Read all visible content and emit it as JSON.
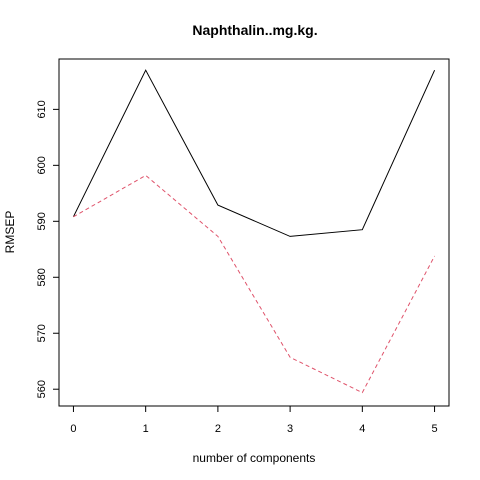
{
  "chart_data": {
    "type": "line",
    "title": "Naphthalin..mg.kg.",
    "xlabel": "number of components",
    "ylabel": "RMSEP",
    "x": [
      0,
      1,
      2,
      3,
      4,
      5
    ],
    "xlim": [
      -0.2,
      5.2
    ],
    "ylim": [
      557,
      619
    ],
    "x_ticks": [
      0,
      1,
      2,
      3,
      4,
      5
    ],
    "y_ticks": [
      560,
      570,
      580,
      590,
      600,
      610
    ],
    "grid": false,
    "series": [
      {
        "values": [
          590.8,
          617.0,
          592.9,
          587.3,
          588.5,
          617.0
        ],
        "color": "#000000",
        "dash": "solid"
      },
      {
        "values": [
          590.8,
          598.2,
          587.3,
          565.7,
          559.4,
          583.8
        ],
        "color": "#DF536B",
        "dash": "dashed"
      }
    ]
  }
}
